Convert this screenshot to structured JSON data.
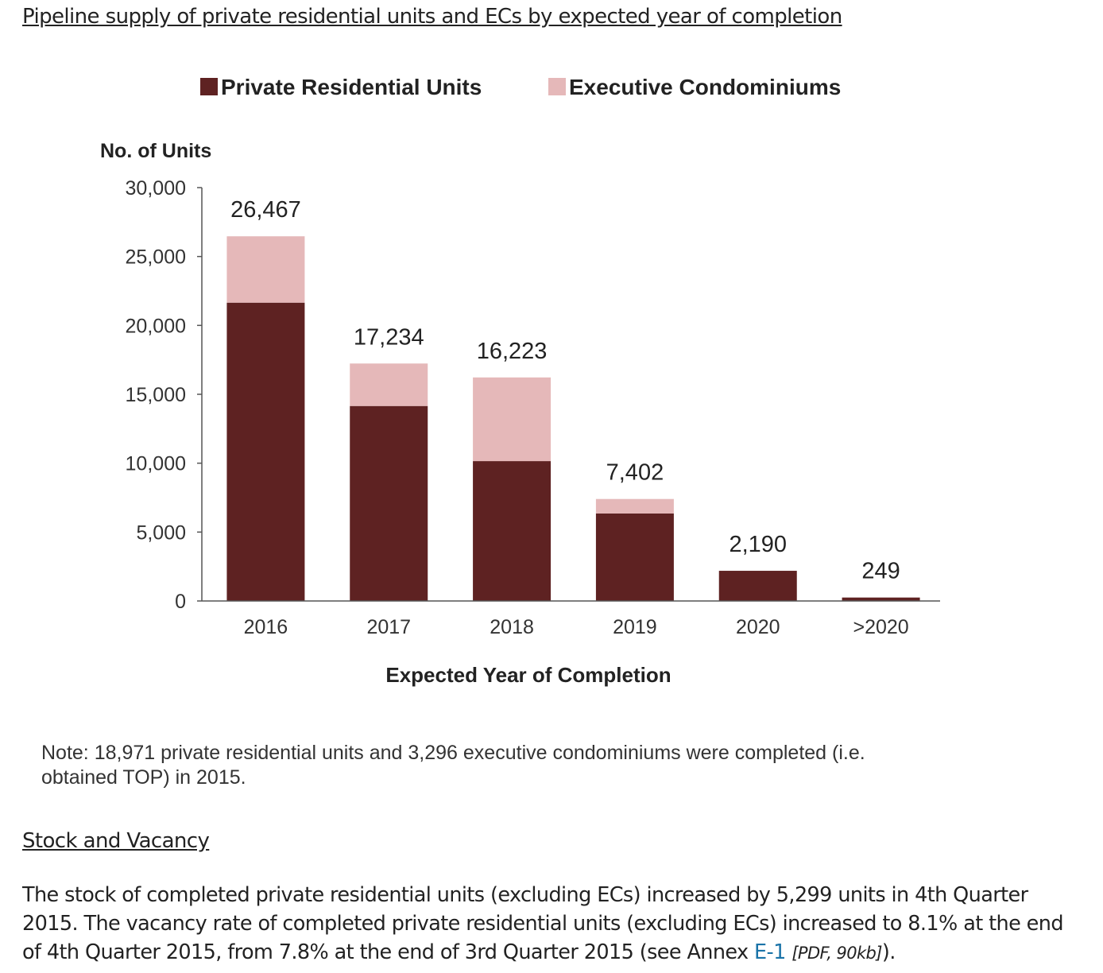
{
  "headings": {
    "pipeline": "Pipeline supply of private residential units and ECs by expected year of completion",
    "stock": "Stock and Vacancy"
  },
  "chart_data": {
    "type": "bar",
    "stacked": true,
    "categories": [
      "2016",
      "2017",
      "2018",
      "2019",
      "2020",
      ">2020"
    ],
    "series": [
      {
        "name": "Private Residential Units",
        "color": "#5e2222",
        "values": [
          21650,
          14150,
          10150,
          6350,
          2190,
          249
        ]
      },
      {
        "name": "Executive Condominiums",
        "color": "#e5b8b9",
        "values": [
          4817,
          3084,
          6073,
          1052,
          0,
          0
        ]
      }
    ],
    "totals": [
      "26,467",
      "17,234",
      "16,223",
      "7,402",
      "2,190",
      "249"
    ],
    "ylabel": "No. of Units",
    "xlabel": "Expected Year of Completion",
    "ylim": [
      0,
      30000
    ],
    "yticks": [
      0,
      5000,
      10000,
      15000,
      20000,
      25000,
      30000
    ],
    "ytick_labels": [
      "0",
      "5,000",
      "10,000",
      "15,000",
      "20,000",
      "25,000",
      "30,000"
    ],
    "legend_position": "top",
    "grid": false
  },
  "note": "Note: 18,971 private residential units and 3,296 executive condominiums were completed (i.e. obtained TOP) in 2015.",
  "paragraph": {
    "text": "The stock of completed private residential units (excluding ECs) increased by 5,299 units in 4th Quarter 2015. The vacancy rate of completed private residential units (excluding ECs) increased to 8.1% at the end of 4th Quarter 2015, from 7.8% at the end of 3rd Quarter 2015 (see Annex ",
    "link_text": "E-1",
    "link_meta": "[PDF, 90kb]",
    "tail": ")."
  }
}
